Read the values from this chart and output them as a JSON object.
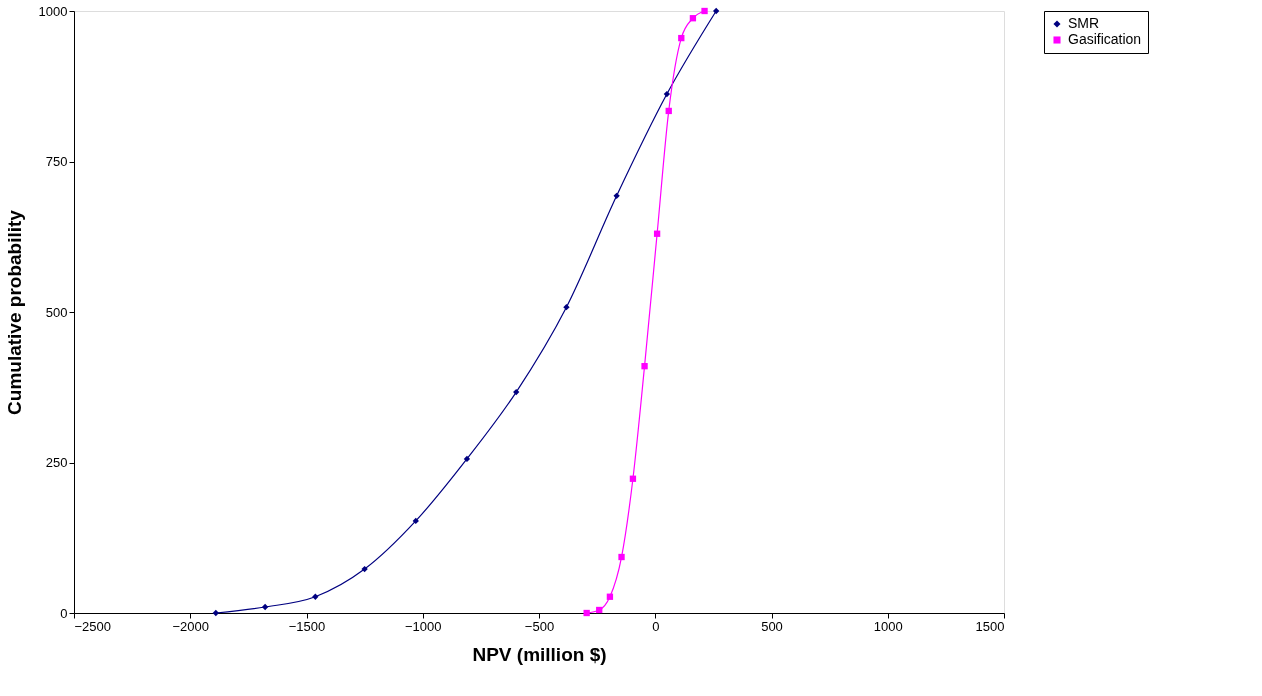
{
  "chart_data": {
    "type": "line",
    "xlabel": "NPV (million $)",
    "ylabel": "Cumulative probability",
    "xlim": [
      -2500,
      1500
    ],
    "xticks": [
      -2500,
      -2000,
      -1500,
      -1000,
      -500,
      0,
      500,
      1000,
      1500
    ],
    "ylim": [
      0,
      1000
    ],
    "yticks": [
      0,
      250,
      500,
      750,
      1000
    ],
    "grid": false,
    "legend": "right",
    "series": [
      {
        "name": "SMR",
        "color": "#000080",
        "marker": "diamond",
        "x": [
          -1890,
          -1678,
          -1462,
          -1250,
          -1030,
          -810,
          -598,
          -382,
          -166,
          50,
          262
        ],
        "values": [
          0,
          10,
          27,
          73,
          153,
          256,
          367,
          508,
          693,
          862,
          1000
        ]
      },
      {
        "name": "Gasification",
        "color": "#ff00ff",
        "marker": "square",
        "x": [
          -295,
          -241,
          -195,
          -145,
          -96,
          -46,
          8,
          58,
          112,
          162,
          212
        ],
        "values": [
          0,
          5,
          27,
          93,
          223,
          410,
          630,
          834,
          955,
          988,
          1000
        ]
      }
    ]
  }
}
